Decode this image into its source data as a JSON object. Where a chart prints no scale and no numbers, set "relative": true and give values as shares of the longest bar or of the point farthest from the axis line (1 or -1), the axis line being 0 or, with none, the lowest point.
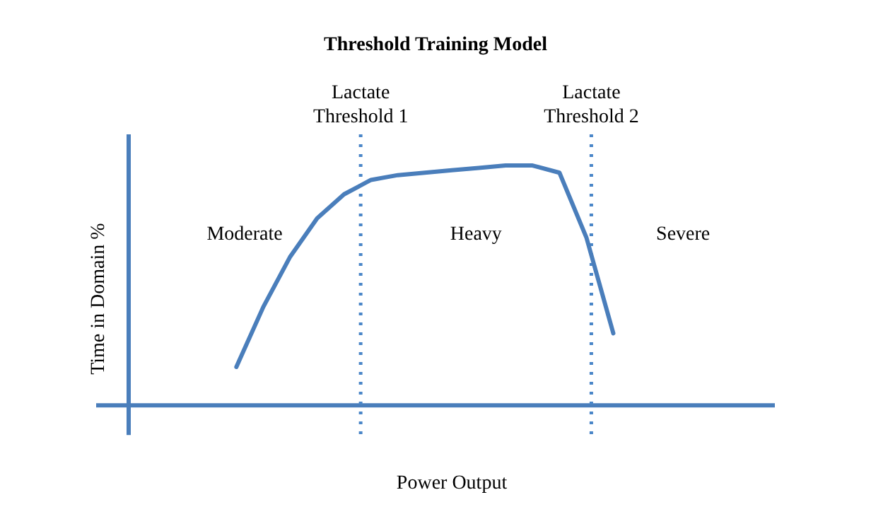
{
  "chart_data": {
    "type": "line",
    "title": "Threshold Training Model",
    "xlabel": "Power Output",
    "ylabel": "Time in Domain %",
    "relative": true,
    "grid": false,
    "legend": false,
    "marker": "none",
    "line_style": "solid",
    "categories": [
      null,
      null,
      null,
      null,
      null,
      null,
      null,
      null,
      null,
      null,
      null,
      null,
      null,
      null,
      null,
      null,
      null,
      null,
      null,
      null,
      null,
      null,
      null,
      null,
      null
    ],
    "series": [
      {
        "color": "#4a7ebb",
        "values": [
          null,
          null,
          null,
          null,
          0.16,
          0.41,
          0.62,
          0.78,
          0.88,
          0.94,
          0.96,
          0.97,
          0.98,
          0.99,
          1,
          1,
          0.97,
          0.7,
          0.3,
          null,
          null,
          null,
          null,
          null,
          null
        ]
      }
    ],
    "annotations": [
      "Lactate\nThreshold 1",
      "Lactate\nThreshold 2",
      "Moderate",
      "Heavy",
      "Severe"
    ]
  }
}
